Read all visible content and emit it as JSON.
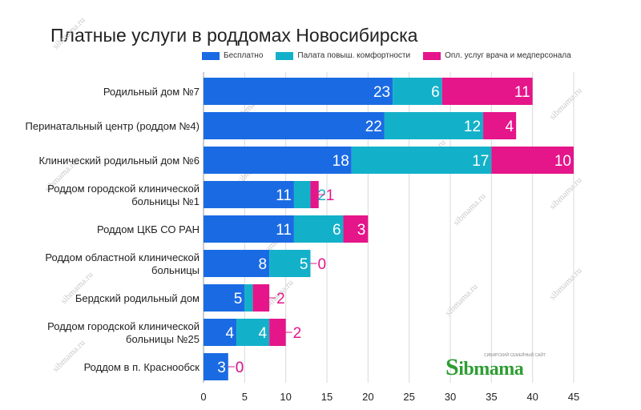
{
  "chart_data": {
    "type": "bar",
    "orientation": "horizontal",
    "stacked": true,
    "title": "Платные услуги в роддомах Новосибирска",
    "categories": [
      [
        "Родильный дом №7"
      ],
      [
        "Перинатальный центр (роддом №4)"
      ],
      [
        "Клинический родильный дом №6"
      ],
      [
        "Роддом городской клинической",
        "больницы №1"
      ],
      [
        "Роддом ЦКБ СО РАН"
      ],
      [
        "Роддом областной клинической",
        "больницы"
      ],
      [
        "Бердский родильный дом"
      ],
      [
        "Роддом городской клинической",
        "больницы №25"
      ],
      [
        "Роддом в п. Краснообск"
      ]
    ],
    "series": [
      {
        "name": "Бесплатно",
        "color": "#1a6be3",
        "values": [
          23,
          22,
          18,
          11,
          11,
          8,
          5,
          4,
          3
        ]
      },
      {
        "name": "Палата повыш. комфортности",
        "color": "#13b1c9",
        "values": [
          6,
          12,
          17,
          2,
          6,
          5,
          1,
          4,
          0
        ]
      },
      {
        "name": "Опл. услуг врача и медперсонала",
        "color": "#e5158a",
        "values": [
          11,
          4,
          10,
          1,
          3,
          0,
          2,
          2,
          0
        ]
      }
    ],
    "xlim": [
      0,
      45
    ],
    "xticks": [
      0,
      5,
      10,
      15,
      20,
      25,
      30,
      35,
      40,
      45
    ],
    "grid": true,
    "legend_position": "top"
  },
  "watermark": "sibmama.ru",
  "logo": {
    "text": "ibmama",
    "initial": "S",
    "tagline": "СИБИРСКИЙ СЕМЕЙНЫЙ САЙТ"
  }
}
